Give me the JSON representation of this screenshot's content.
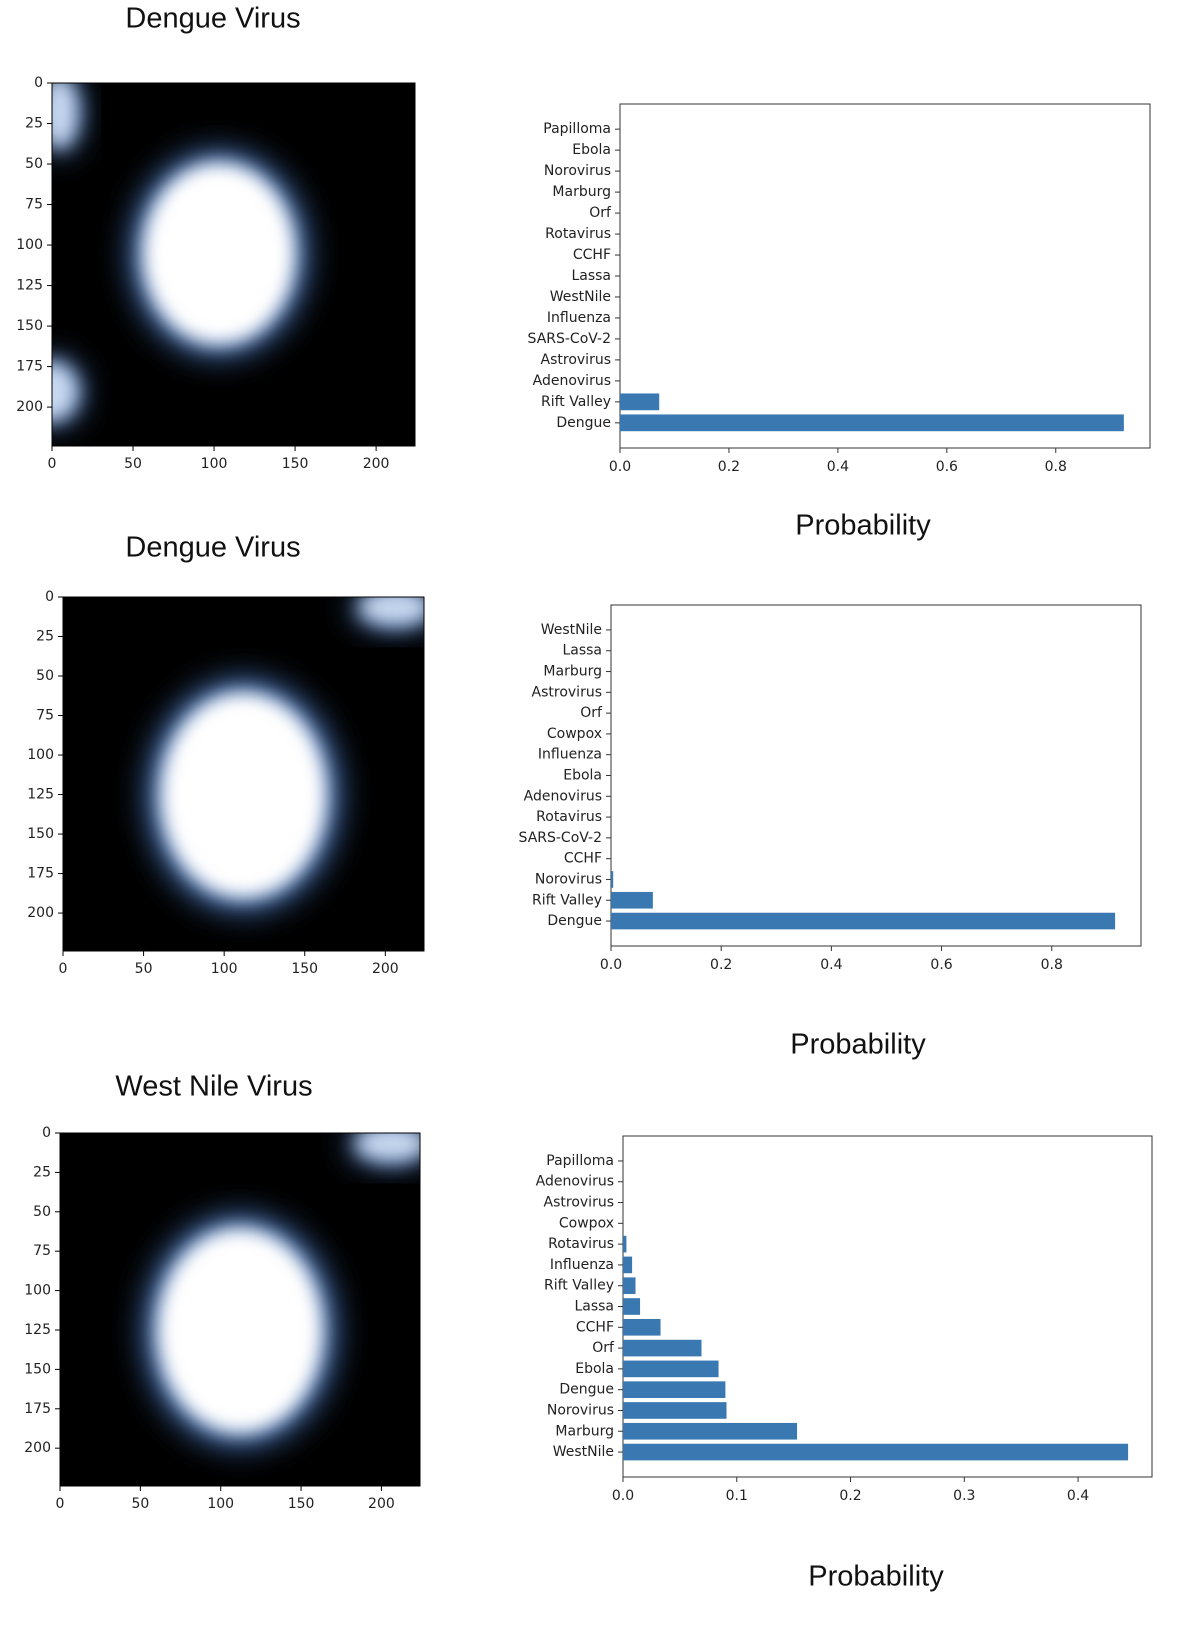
{
  "chart_data": [
    {
      "type": "image",
      "title": "Dengue Virus",
      "xlim": [
        0,
        224
      ],
      "ylim": [
        224,
        0
      ],
      "xticks": [
        0,
        50,
        100,
        150,
        200
      ],
      "yticks": [
        0,
        25,
        50,
        75,
        100,
        125,
        150,
        175,
        200
      ]
    },
    {
      "type": "barh",
      "x_label": "Probability",
      "color": "#3a78b2",
      "categories": [
        "Papilloma",
        "Ebola",
        "Norovirus",
        "Marburg",
        "Orf",
        "Rotavirus",
        "CCHF",
        "Lassa",
        "WestNile",
        "Influenza",
        "SARS-CoV-2",
        "Astrovirus",
        "Adenovirus",
        "Rift Valley",
        "Dengue"
      ],
      "values": [
        0,
        0,
        0,
        0,
        0,
        0,
        0,
        0,
        0,
        0,
        0,
        0,
        0,
        0.072,
        0.925
      ],
      "xlim": [
        0,
        0.973
      ],
      "xticks": [
        {
          "value": 0,
          "label": "0.0"
        },
        0.2,
        0.4,
        0.6,
        0.8
      ]
    },
    {
      "type": "image",
      "title": "Dengue Virus",
      "xlim": [
        0,
        224
      ],
      "ylim": [
        224,
        0
      ],
      "xticks": [
        0,
        50,
        100,
        150,
        200
      ],
      "yticks": [
        0,
        25,
        50,
        75,
        100,
        125,
        150,
        175,
        200
      ]
    },
    {
      "type": "barh",
      "x_label": "Probability",
      "color": "#3a78b2",
      "categories": [
        "WestNile",
        "Lassa",
        "Marburg",
        "Astrovirus",
        "Orf",
        "Cowpox",
        "Influenza",
        "Ebola",
        "Adenovirus",
        "Rotavirus",
        "SARS-CoV-2",
        "CCHF",
        "Norovirus",
        "Rift Valley",
        "Dengue"
      ],
      "values": [
        0,
        0,
        0,
        0,
        0,
        0,
        0,
        0,
        0,
        0,
        0,
        0,
        0.004,
        0.076,
        0.915
      ],
      "xlim": [
        0,
        0.962
      ],
      "xticks": [
        {
          "value": 0,
          "label": "0.0"
        },
        0.2,
        0.4,
        0.6,
        0.8
      ]
    },
    {
      "type": "image",
      "title": "West Nile Virus",
      "xlim": [
        0,
        224
      ],
      "ylim": [
        224,
        0
      ],
      "xticks": [
        0,
        50,
        100,
        150,
        200
      ],
      "yticks": [
        0,
        25,
        50,
        75,
        100,
        125,
        150,
        175,
        200
      ]
    },
    {
      "type": "barh",
      "x_label": "Probability",
      "color": "#3a78b2",
      "categories": [
        "Papilloma",
        "Adenovirus",
        "Astrovirus",
        "Cowpox",
        "Rotavirus",
        "Influenza",
        "Rift Valley",
        "Lassa",
        "CCHF",
        "Orf",
        "Ebola",
        "Dengue",
        "Norovirus",
        "Marburg",
        "WestNile"
      ],
      "values": [
        0,
        0,
        0,
        0,
        0.003,
        0.008,
        0.011,
        0.015,
        0.033,
        0.069,
        0.084,
        0.09,
        0.091,
        0.153,
        0.444
      ],
      "xlim": [
        0,
        0.465
      ],
      "xticks": [
        {
          "value": 0,
          "label": "0.0"
        },
        0.1,
        0.2,
        0.3,
        0.4
      ]
    }
  ]
}
